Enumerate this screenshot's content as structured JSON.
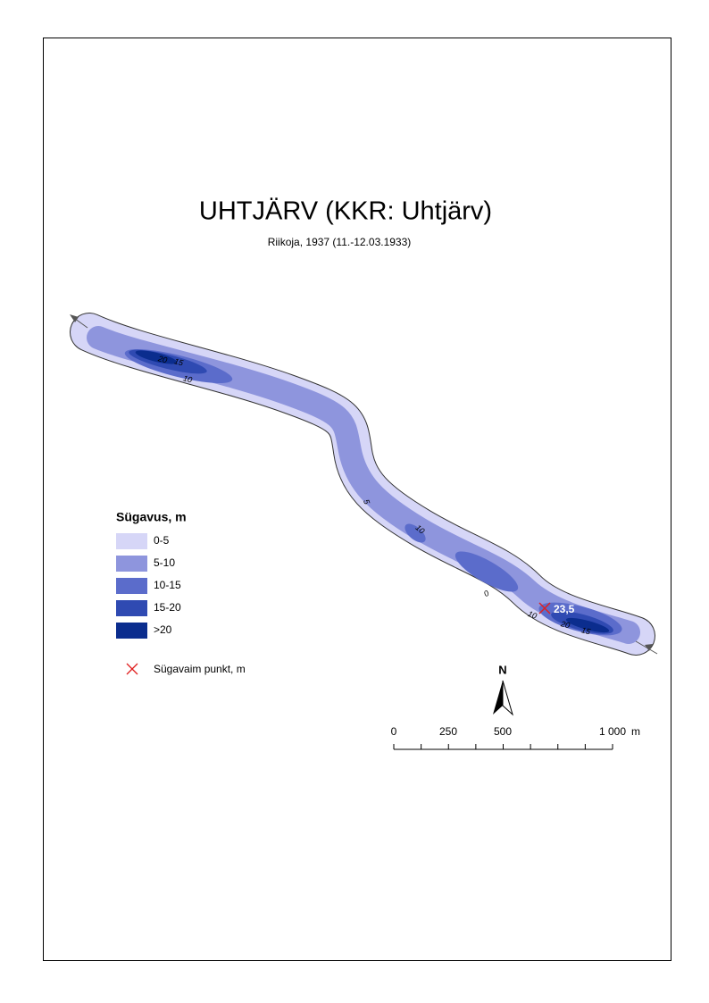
{
  "header": {
    "title": "UHTJÄRV (KKR: Uhtjärv)",
    "subtitle": "Riikoja, 1937 (11.-12.03.1933)"
  },
  "legend": {
    "title": "Sügavus, m",
    "items": [
      {
        "label": "0-5",
        "color": "#d6d6f7"
      },
      {
        "label": "5-10",
        "color": "#8e95dd"
      },
      {
        "label": "10-15",
        "color": "#5b6ccb"
      },
      {
        "label": "15-20",
        "color": "#2f4ab2"
      },
      {
        "label": ">20",
        "color": "#0b2d8e"
      }
    ],
    "deepest_point_label": "Sügavaim punkt, m"
  },
  "map": {
    "deepest_depth": "23,5",
    "contour_labels": [
      "20",
      "15",
      "10",
      "5",
      "10",
      "0",
      "10",
      "20",
      "15"
    ]
  },
  "north": "N",
  "scale_bar": {
    "labels": [
      "0",
      "250",
      "500",
      "1 000"
    ],
    "unit": "m"
  }
}
